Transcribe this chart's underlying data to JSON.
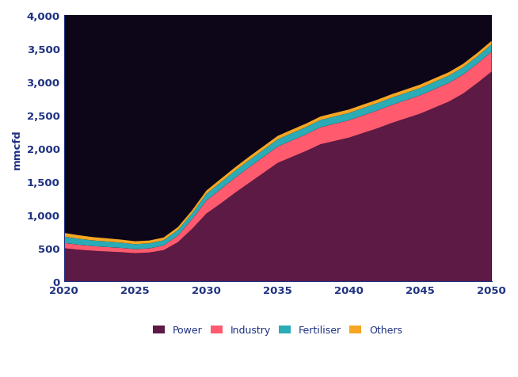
{
  "years": [
    2020,
    2021,
    2022,
    2023,
    2024,
    2025,
    2026,
    2027,
    2028,
    2029,
    2030,
    2031,
    2032,
    2033,
    2034,
    2035,
    2036,
    2037,
    2038,
    2039,
    2040,
    2041,
    2042,
    2043,
    2044,
    2045,
    2046,
    2047,
    2048,
    2049,
    2050
  ],
  "power": [
    500,
    478,
    462,
    450,
    440,
    425,
    435,
    470,
    590,
    790,
    1020,
    1170,
    1330,
    1480,
    1630,
    1780,
    1870,
    1960,
    2060,
    2110,
    2160,
    2230,
    2300,
    2380,
    2450,
    2520,
    2610,
    2700,
    2820,
    2980,
    3150
  ],
  "industry": [
    80,
    75,
    70,
    68,
    65,
    60,
    62,
    70,
    100,
    145,
    195,
    215,
    225,
    235,
    240,
    245,
    248,
    250,
    255,
    258,
    260,
    265,
    268,
    270,
    272,
    275,
    278,
    280,
    285,
    290,
    300
  ],
  "fertiliser": [
    95,
    90,
    85,
    82,
    78,
    75,
    76,
    78,
    82,
    88,
    100,
    103,
    105,
    107,
    108,
    109,
    110,
    110,
    110,
    110,
    110,
    110,
    110,
    110,
    110,
    110,
    110,
    110,
    110,
    110,
    110
  ],
  "others": [
    55,
    53,
    50,
    48,
    46,
    44,
    42,
    42,
    44,
    46,
    50,
    51,
    52,
    52,
    52,
    52,
    52,
    52,
    52,
    52,
    52,
    52,
    52,
    52,
    52,
    52,
    52,
    52,
    52,
    52,
    52
  ],
  "colors": {
    "power": "#5C1A45",
    "industry": "#FF5A6E",
    "fertiliser": "#2AABB5",
    "others": "#F5A623"
  },
  "plot_bg": "#0D0618",
  "ylabel": "mmcfd",
  "ylim": [
    0,
    4000
  ],
  "yticks": [
    0,
    500,
    1000,
    1500,
    2000,
    2500,
    3000,
    3500,
    4000
  ],
  "ytick_labels": [
    "0",
    "500",
    "1,000",
    "1,500",
    "2,000",
    "2,500",
    "3,000",
    "3,500",
    "4,000"
  ],
  "xticks": [
    2020,
    2025,
    2030,
    2035,
    2040,
    2045,
    2050
  ],
  "legend_labels": [
    "Power",
    "Industry",
    "Fertiliser",
    "Others"
  ],
  "fig_bg": "#FFFFFF",
  "axis_color": "#1F3282",
  "tick_color": "#1F3282"
}
